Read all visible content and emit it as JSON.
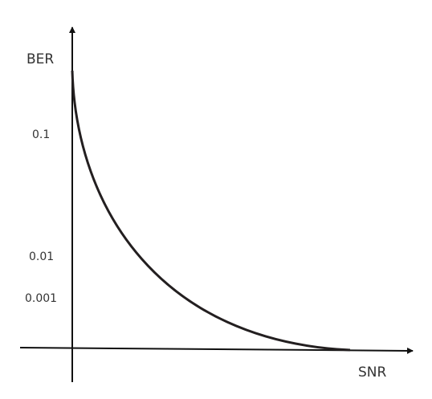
{
  "axes": {
    "y_label": "BER",
    "x_label": "SNR",
    "y_tick_labels": [
      "0.1",
      "0.01",
      "0.001"
    ]
  }
}
